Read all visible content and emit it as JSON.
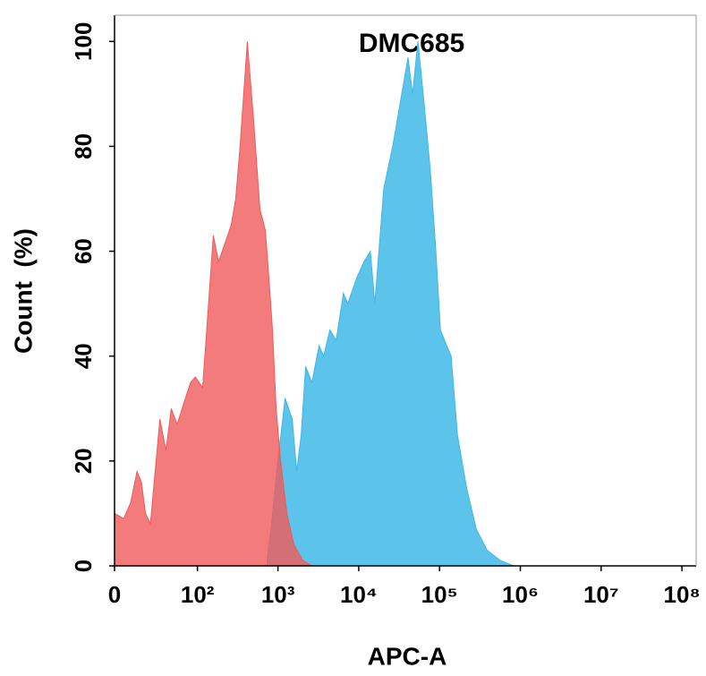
{
  "chart_data": {
    "type": "area",
    "title": "DMC685",
    "x_label": "APC-A",
    "y_label": "Count  (%)",
    "xscale": "biexponential",
    "xlim": [
      0,
      150000000
    ],
    "xticks": [
      0,
      {
        "value": 100,
        "label": "10²"
      },
      {
        "value": 1000,
        "label": "10³"
      },
      {
        "value": 10000,
        "label": "10⁴"
      },
      {
        "value": 100000,
        "label": "10⁵"
      },
      {
        "value": 1000000,
        "label": "10⁶"
      },
      {
        "value": 10000000,
        "label": "10⁷"
      },
      {
        "value": 100000000,
        "label": "10⁸"
      }
    ],
    "ylim": [
      0,
      105
    ],
    "yticks": [
      0,
      20,
      40,
      60,
      80,
      100
    ],
    "series": [
      {
        "color": "#3fb8e6",
        "x": [
          734,
          834,
          1000,
          1225,
          1503,
          1708,
          1942,
          2204,
          2637,
          3230,
          3677,
          4395,
          5258,
          6460,
          7334,
          9481,
          11628,
          13927,
          15808,
          20425,
          26372,
          35853,
          40755,
          46322,
          54036,
          64657,
          77330,
          90155,
          102467,
          122588,
          139327,
          166649,
          215175,
          284943,
          387410,
          567910,
          833720
        ],
        "values": [
          1,
          8,
          20,
          32,
          28,
          18,
          25,
          38,
          35,
          42,
          40,
          45,
          43,
          52,
          50,
          55,
          58,
          60,
          50,
          72,
          80,
          92,
          97,
          90,
          100,
          88,
          75,
          60,
          45,
          42,
          40,
          25,
          15,
          7,
          3,
          1,
          0
        ]
      },
      {
        "color": "#f05a5a",
        "x": [
          0,
          5,
          9,
          13,
          16,
          19,
          23,
          32,
          39,
          46,
          55,
          67,
          82,
          94,
          116,
          128,
          158,
          184,
          226,
          264,
          300,
          340,
          418,
          500,
          598,
          697,
          773,
          855,
          950,
          1078,
          1289,
          1582,
          2043,
          2637
        ],
        "values": [
          10,
          9,
          12,
          18,
          16,
          10,
          8,
          28,
          22,
          30,
          27,
          31,
          35,
          36,
          34,
          43,
          63,
          58,
          62,
          65,
          70,
          80,
          100,
          85,
          68,
          64,
          55,
          45,
          30,
          20,
          10,
          4,
          1,
          0
        ]
      }
    ]
  }
}
